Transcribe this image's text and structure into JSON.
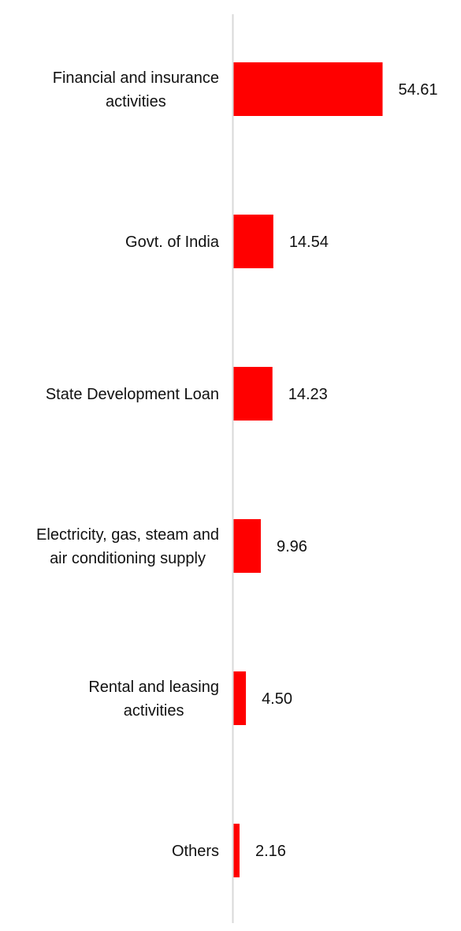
{
  "chart_data": {
    "type": "bar",
    "orientation": "horizontal",
    "categories": [
      [
        "Financial and insurance",
        "activities"
      ],
      [
        "Govt. of India"
      ],
      [
        "State Development Loan"
      ],
      [
        "Electricity, gas, steam and",
        "air conditioning supply"
      ],
      [
        "Rental and leasing",
        "activities"
      ],
      [
        "Others"
      ]
    ],
    "values": [
      54.61,
      14.54,
      14.23,
      9.96,
      4.5,
      2.16
    ],
    "value_labels": [
      "54.61",
      "14.54",
      "14.23",
      "9.96",
      "4.50",
      "2.16"
    ],
    "xlim": [
      0,
      54.61
    ],
    "bar_color": "#ff0000",
    "axis_color": "#d9d9d9",
    "grid": false,
    "legend": "none"
  }
}
